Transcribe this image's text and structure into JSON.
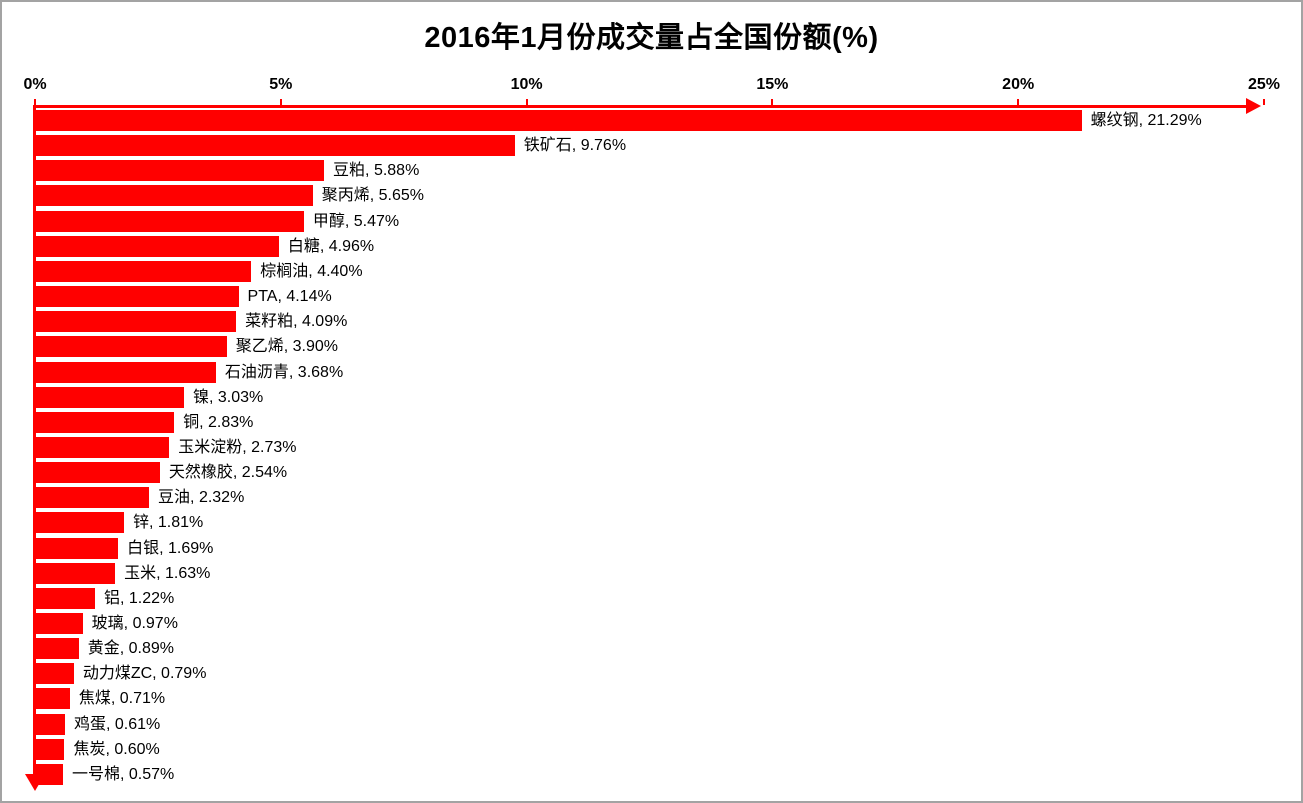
{
  "colors": {
    "bar": "#ff0000",
    "axis": "#ff0000",
    "text": "#000000",
    "border": "#a3a3a3",
    "background": "#ffffff"
  },
  "chart_data": {
    "type": "bar",
    "orientation": "horizontal",
    "title": "2016年1月份成交量占全国份额(%)",
    "xlabel": "",
    "ylabel": "",
    "xlim": [
      0,
      25
    ],
    "grid": false,
    "legend": "none",
    "value_axis_position": "top",
    "axis_arrows": true,
    "label_format": "{category}, {value}%",
    "x_ticks": [
      {
        "label": "0%",
        "value": 0
      },
      {
        "label": "5%",
        "value": 5
      },
      {
        "label": "10%",
        "value": 10
      },
      {
        "label": "15%",
        "value": 15
      },
      {
        "label": "20%",
        "value": 20
      },
      {
        "label": "25%",
        "value": 25
      }
    ],
    "categories": [
      "螺纹钢",
      "铁矿石",
      "豆粕",
      "聚丙烯",
      "甲醇",
      "白糖",
      "棕榈油",
      "PTA",
      "菜籽粕",
      "聚乙烯",
      "石油沥青",
      "镍",
      "铜",
      "玉米淀粉",
      "天然橡胶",
      "豆油",
      "锌",
      "白银",
      "玉米",
      "铝",
      "玻璃",
      "黄金",
      "动力煤ZC",
      "焦煤",
      "鸡蛋",
      "焦炭",
      "一号棉"
    ],
    "values": [
      21.29,
      9.76,
      5.88,
      5.65,
      5.47,
      4.96,
      4.4,
      4.14,
      4.09,
      3.9,
      3.68,
      3.03,
      2.83,
      2.73,
      2.54,
      2.32,
      1.81,
      1.69,
      1.63,
      1.22,
      0.97,
      0.89,
      0.79,
      0.71,
      0.61,
      0.6,
      0.57
    ]
  }
}
